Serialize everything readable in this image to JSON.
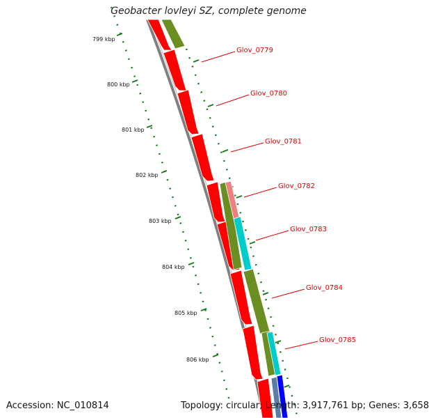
{
  "title": "Geobacter lovleyi SZ, complete genome",
  "footer": {
    "accession": "Accession: NC_010814",
    "topology": "Topology: circular; Length: 3,917,761 bp; Genes: 3,658"
  },
  "ticks": [
    {
      "label": "799 kbp"
    },
    {
      "label": "800 kbp"
    },
    {
      "label": "801 kbp"
    },
    {
      "label": "802 kbp"
    },
    {
      "label": "803 kbp"
    },
    {
      "label": "804 kbp"
    },
    {
      "label": "805 kbp"
    },
    {
      "label": "806 kbp"
    }
  ],
  "gene_labels": [
    {
      "label": "Glov_0779"
    },
    {
      "label": "Glov_0780"
    },
    {
      "label": "Glov_0781"
    },
    {
      "label": "Glov_0782"
    },
    {
      "label": "Glov_0783"
    },
    {
      "label": "Glov_0784"
    },
    {
      "label": "Glov_0785"
    }
  ],
  "colors": {
    "cds_forward": "#ff0000",
    "olive_track": "#6b8e23",
    "cyan_track": "#00cccc",
    "pink_track": "#f08080",
    "blue_track": "#0000ff",
    "label_color": "#e00000",
    "tick_color": "#1a7a1a",
    "backbone": "#777777"
  }
}
